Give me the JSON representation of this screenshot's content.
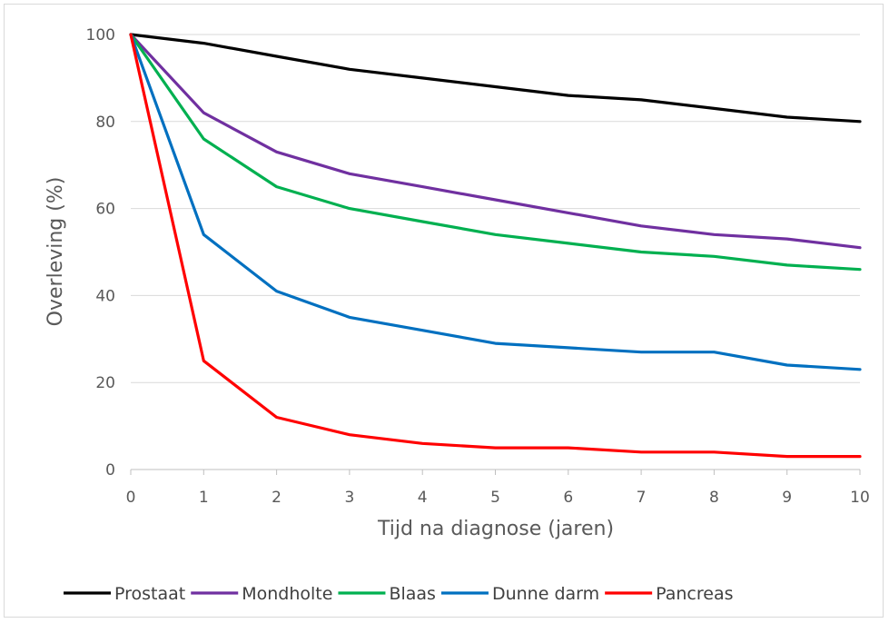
{
  "chart_data": {
    "type": "line",
    "title": "",
    "xlabel": "Tijd na diagnose (jaren)",
    "ylabel": "Overleving (%)",
    "x": [
      0,
      1,
      2,
      3,
      4,
      5,
      6,
      7,
      8,
      9,
      10
    ],
    "xlim": [
      0,
      10
    ],
    "ylim": [
      0,
      100
    ],
    "x_ticks": [
      "0",
      "1",
      "2",
      "3",
      "4",
      "5",
      "6",
      "7",
      "8",
      "9",
      "10"
    ],
    "y_ticks": [
      "0",
      "20",
      "40",
      "60",
      "80",
      "100"
    ],
    "grid": "horizontal",
    "legend_position": "bottom",
    "series": [
      {
        "name": "Prostaat",
        "color": "#000000",
        "values": [
          100,
          98,
          95,
          92,
          90,
          88,
          86,
          85,
          83,
          81,
          80
        ]
      },
      {
        "name": "Mondholte",
        "color": "#7030a0",
        "values": [
          100,
          82,
          73,
          68,
          65,
          62,
          59,
          56,
          54,
          53,
          51
        ]
      },
      {
        "name": "Blaas",
        "color": "#00b050",
        "values": [
          100,
          76,
          65,
          60,
          57,
          54,
          52,
          50,
          49,
          47,
          46
        ]
      },
      {
        "name": "Dunne darm",
        "color": "#0070c0",
        "values": [
          100,
          54,
          41,
          35,
          32,
          29,
          28,
          27,
          27,
          24,
          23
        ]
      },
      {
        "name": "Pancreas",
        "color": "#ff0000",
        "values": [
          100,
          25,
          12,
          8,
          6,
          5,
          5,
          4,
          4,
          3,
          3
        ]
      }
    ]
  }
}
